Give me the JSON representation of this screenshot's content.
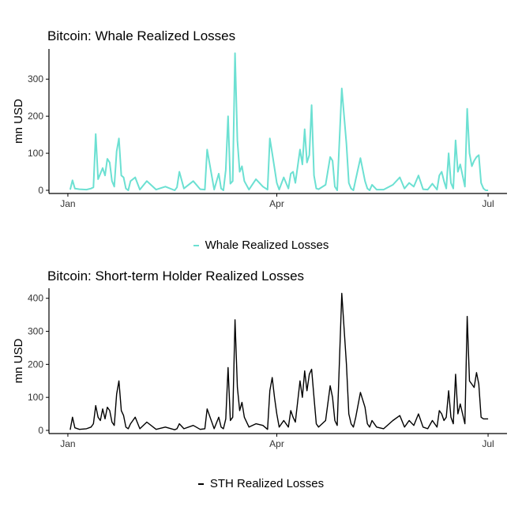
{
  "chart_data": [
    {
      "type": "line",
      "title": "Bitcoin: Whale Realized Losses",
      "ylabel": "mn USD",
      "xlabel": "",
      "x_axis": "date",
      "xlim": [
        "2022-01-01",
        "2022-07-01"
      ],
      "xticks": [
        {
          "date": "2022-01-01",
          "label": "Jan"
        },
        {
          "date": "2022-04-01",
          "label": "Apr"
        },
        {
          "date": "2022-07-01",
          "label": "Jul"
        }
      ],
      "ylim": [
        0,
        390
      ],
      "yticks": [
        0,
        100,
        200,
        300
      ],
      "grid": false,
      "legend": "bottom",
      "series": [
        {
          "name": "Whale Realized Losses",
          "color": "#6ce0d2",
          "x": [
            "2022-01-02",
            "2022-01-03",
            "2022-01-04",
            "2022-01-06",
            "2022-01-09",
            "2022-01-11",
            "2022-01-12",
            "2022-01-13",
            "2022-01-14",
            "2022-01-15",
            "2022-01-16",
            "2022-01-17",
            "2022-01-18",
            "2022-01-19",
            "2022-01-20",
            "2022-01-21",
            "2022-01-22",
            "2022-01-23",
            "2022-01-24",
            "2022-01-25",
            "2022-01-26",
            "2022-01-27",
            "2022-01-28",
            "2022-01-30",
            "2022-02-01",
            "2022-02-04",
            "2022-02-08",
            "2022-02-12",
            "2022-02-16",
            "2022-02-17",
            "2022-02-18",
            "2022-02-20",
            "2022-02-24",
            "2022-02-27",
            "2022-03-01",
            "2022-03-02",
            "2022-03-05",
            "2022-03-07",
            "2022-03-08",
            "2022-03-09",
            "2022-03-10",
            "2022-03-11",
            "2022-03-12",
            "2022-03-13",
            "2022-03-14",
            "2022-03-15",
            "2022-03-16",
            "2022-03-17",
            "2022-03-18",
            "2022-03-20",
            "2022-03-23",
            "2022-03-26",
            "2022-03-28",
            "2022-03-29",
            "2022-03-30",
            "2022-03-31",
            "2022-04-01",
            "2022-04-02",
            "2022-04-04",
            "2022-04-06",
            "2022-04-07",
            "2022-04-08",
            "2022-04-09",
            "2022-04-11",
            "2022-04-12",
            "2022-04-13",
            "2022-04-14",
            "2022-04-15",
            "2022-04-16",
            "2022-04-17",
            "2022-04-18",
            "2022-04-19",
            "2022-04-22",
            "2022-04-24",
            "2022-04-25",
            "2022-04-26",
            "2022-04-27",
            "2022-04-29",
            "2022-05-01",
            "2022-05-02",
            "2022-05-03",
            "2022-05-04",
            "2022-05-05",
            "2022-05-07",
            "2022-05-09",
            "2022-05-10",
            "2022-05-11",
            "2022-05-12",
            "2022-05-14",
            "2022-05-17",
            "2022-05-21",
            "2022-05-24",
            "2022-05-26",
            "2022-05-28",
            "2022-05-30",
            "2022-06-01",
            "2022-06-03",
            "2022-06-05",
            "2022-06-07",
            "2022-06-09",
            "2022-06-10",
            "2022-06-11",
            "2022-06-12",
            "2022-06-13",
            "2022-06-14",
            "2022-06-15",
            "2022-06-16",
            "2022-06-17",
            "2022-06-18",
            "2022-06-19",
            "2022-06-21",
            "2022-06-22",
            "2022-06-23",
            "2022-06-24",
            "2022-06-25",
            "2022-06-26",
            "2022-06-27",
            "2022-06-28",
            "2022-06-29",
            "2022-06-30",
            "2022-07-01"
          ],
          "y": [
            2,
            27,
            5,
            3,
            2,
            5,
            8,
            152,
            30,
            45,
            60,
            40,
            85,
            75,
            25,
            10,
            105,
            140,
            40,
            35,
            5,
            0,
            25,
            35,
            2,
            25,
            2,
            10,
            0,
            8,
            50,
            5,
            25,
            3,
            2,
            110,
            2,
            45,
            5,
            0,
            55,
            200,
            18,
            25,
            370,
            135,
            50,
            65,
            25,
            2,
            30,
            10,
            2,
            140,
            100,
            60,
            20,
            2,
            35,
            5,
            45,
            50,
            20,
            110,
            70,
            165,
            75,
            95,
            230,
            40,
            5,
            3,
            15,
            90,
            80,
            10,
            0,
            275,
            125,
            20,
            5,
            0,
            30,
            87,
            25,
            5,
            0,
            15,
            2,
            2,
            15,
            35,
            5,
            20,
            10,
            40,
            3,
            2,
            18,
            2,
            40,
            50,
            25,
            5,
            100,
            20,
            5,
            135,
            50,
            70,
            10,
            220,
            100,
            65,
            80,
            90,
            95,
            20,
            5,
            0,
            0
          ]
        }
      ]
    },
    {
      "type": "line",
      "title": "Bitcoin: Short-term Holder Realized Losses",
      "ylabel": "mn USD",
      "xlabel": "",
      "x_axis": "date",
      "xlim": [
        "2022-01-01",
        "2022-07-01"
      ],
      "xticks": [
        {
          "date": "2022-01-01",
          "label": "Jan"
        },
        {
          "date": "2022-04-01",
          "label": "Apr"
        },
        {
          "date": "2022-07-01",
          "label": "Jul"
        }
      ],
      "ylim": [
        0,
        440
      ],
      "yticks": [
        0,
        100,
        200,
        300,
        400
      ],
      "grid": false,
      "legend": "bottom",
      "series": [
        {
          "name": "STH Realized Losses",
          "color": "#000000",
          "x": [
            "2022-01-02",
            "2022-01-03",
            "2022-01-04",
            "2022-01-06",
            "2022-01-09",
            "2022-01-11",
            "2022-01-12",
            "2022-01-13",
            "2022-01-14",
            "2022-01-15",
            "2022-01-16",
            "2022-01-17",
            "2022-01-18",
            "2022-01-19",
            "2022-01-20",
            "2022-01-21",
            "2022-01-22",
            "2022-01-23",
            "2022-01-24",
            "2022-01-25",
            "2022-01-26",
            "2022-01-27",
            "2022-01-28",
            "2022-01-30",
            "2022-02-01",
            "2022-02-04",
            "2022-02-08",
            "2022-02-12",
            "2022-02-16",
            "2022-02-17",
            "2022-02-18",
            "2022-02-20",
            "2022-02-24",
            "2022-02-27",
            "2022-03-01",
            "2022-03-02",
            "2022-03-05",
            "2022-03-07",
            "2022-03-08",
            "2022-03-09",
            "2022-03-10",
            "2022-03-11",
            "2022-03-12",
            "2022-03-13",
            "2022-03-14",
            "2022-03-15",
            "2022-03-16",
            "2022-03-17",
            "2022-03-18",
            "2022-03-20",
            "2022-03-23",
            "2022-03-26",
            "2022-03-28",
            "2022-03-29",
            "2022-03-30",
            "2022-03-31",
            "2022-04-01",
            "2022-04-02",
            "2022-04-04",
            "2022-04-06",
            "2022-04-07",
            "2022-04-08",
            "2022-04-09",
            "2022-04-11",
            "2022-04-12",
            "2022-04-13",
            "2022-04-14",
            "2022-04-15",
            "2022-04-16",
            "2022-04-17",
            "2022-04-18",
            "2022-04-19",
            "2022-04-22",
            "2022-04-24",
            "2022-04-25",
            "2022-04-26",
            "2022-04-27",
            "2022-04-29",
            "2022-05-01",
            "2022-05-02",
            "2022-05-03",
            "2022-05-04",
            "2022-05-05",
            "2022-05-07",
            "2022-05-09",
            "2022-05-10",
            "2022-05-11",
            "2022-05-12",
            "2022-05-14",
            "2022-05-17",
            "2022-05-21",
            "2022-05-24",
            "2022-05-26",
            "2022-05-28",
            "2022-05-30",
            "2022-06-01",
            "2022-06-03",
            "2022-06-05",
            "2022-06-07",
            "2022-06-09",
            "2022-06-10",
            "2022-06-11",
            "2022-06-12",
            "2022-06-13",
            "2022-06-14",
            "2022-06-15",
            "2022-06-16",
            "2022-06-17",
            "2022-06-18",
            "2022-06-19",
            "2022-06-21",
            "2022-06-22",
            "2022-06-23",
            "2022-06-24",
            "2022-06-25",
            "2022-06-26",
            "2022-06-27",
            "2022-06-28",
            "2022-06-29",
            "2022-06-30",
            "2022-07-01"
          ],
          "y": [
            2,
            40,
            8,
            3,
            5,
            10,
            20,
            75,
            40,
            30,
            65,
            35,
            70,
            60,
            25,
            15,
            110,
            150,
            60,
            45,
            10,
            5,
            20,
            40,
            5,
            25,
            3,
            10,
            2,
            5,
            20,
            5,
            15,
            3,
            5,
            65,
            5,
            40,
            10,
            5,
            35,
            190,
            30,
            40,
            335,
            130,
            60,
            85,
            40,
            10,
            20,
            15,
            3,
            120,
            160,
            100,
            50,
            10,
            30,
            10,
            60,
            40,
            25,
            150,
            100,
            180,
            120,
            170,
            185,
            100,
            20,
            10,
            30,
            135,
            100,
            30,
            15,
            415,
            200,
            50,
            20,
            10,
            40,
            115,
            70,
            20,
            10,
            30,
            10,
            5,
            30,
            45,
            10,
            30,
            15,
            50,
            10,
            5,
            30,
            10,
            60,
            50,
            30,
            40,
            120,
            40,
            20,
            170,
            50,
            80,
            20,
            345,
            150,
            140,
            130,
            175,
            140,
            40,
            35,
            35,
            35
          ]
        }
      ]
    }
  ]
}
